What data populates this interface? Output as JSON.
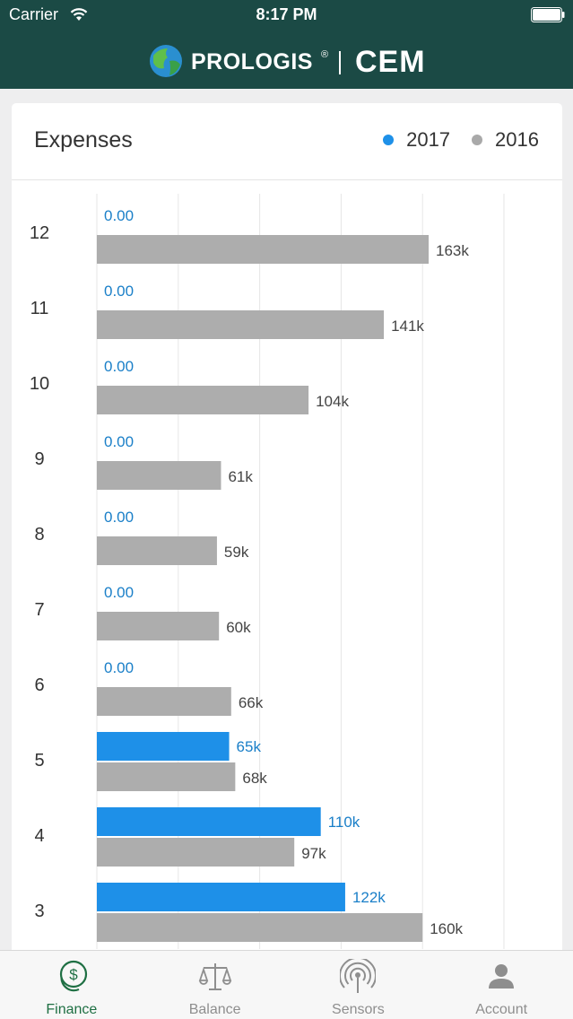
{
  "status_bar": {
    "carrier": "Carrier",
    "time": "8:17 PM"
  },
  "brand": {
    "name": "PROLOGIS",
    "registered": "®",
    "partner": "CEM"
  },
  "card": {
    "title": "Expenses",
    "legend": [
      {
        "label": "2017",
        "color": "#1e90e8"
      },
      {
        "label": "2016",
        "color": "#a9a9a9"
      }
    ]
  },
  "colors": {
    "series_2017": "#1e90e8",
    "series_2016": "#adadad",
    "label_2017": "#1a7fc8",
    "label_2016": "#444444",
    "header_bg": "#1b4a45",
    "active_tab": "#1e6f43"
  },
  "chart_data": {
    "type": "bar",
    "orientation": "horizontal",
    "categories": [
      "12",
      "11",
      "10",
      "9",
      "8",
      "7",
      "6",
      "5",
      "4",
      "3"
    ],
    "series": [
      {
        "name": "2017",
        "values": [
          0,
          0,
          0,
          0,
          0,
          0,
          0,
          65,
          110,
          122
        ],
        "labels": [
          "0.00",
          "0.00",
          "0.00",
          "0.00",
          "0.00",
          "0.00",
          "0.00",
          "65k",
          "110k",
          "122k"
        ]
      },
      {
        "name": "2016",
        "values": [
          163,
          141,
          104,
          61,
          59,
          60,
          66,
          68,
          97,
          160
        ],
        "labels": [
          "163k",
          "141k",
          "104k",
          "61k",
          "59k",
          "60k",
          "66k",
          "68k",
          "97k",
          "160k"
        ]
      }
    ],
    "unit": "k",
    "xlim": [
      0,
      200
    ],
    "grid": true,
    "legend_position": "top-right"
  },
  "tabs": [
    {
      "label": "Finance",
      "icon": "dollar-coins-icon",
      "active": true
    },
    {
      "label": "Balance",
      "icon": "scales-icon",
      "active": false
    },
    {
      "label": "Sensors",
      "icon": "sensor-signal-icon",
      "active": false
    },
    {
      "label": "Account",
      "icon": "user-icon",
      "active": false
    }
  ]
}
